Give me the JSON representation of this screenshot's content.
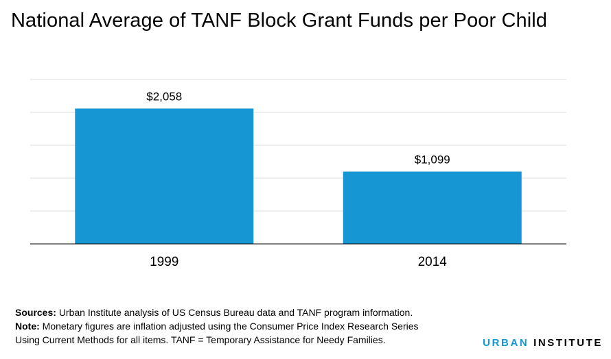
{
  "title": "National Average of TANF Block Grant Funds per Poor Child",
  "chart_data": {
    "type": "bar",
    "categories": [
      "1999",
      "2014"
    ],
    "values": [
      2058,
      1099
    ],
    "value_labels": [
      "$2,058",
      "$1,099"
    ],
    "ylim": [
      0,
      2500
    ],
    "grid": true,
    "bar_color": "#1696d2"
  },
  "notes": {
    "sources_label": "Sources:",
    "sources_text": "Urban Institute analysis of US Census Bureau data and TANF program information.",
    "note_label": "Note:",
    "note_text_line1": "Monetary figures are inflation adjusted using the Consumer Price Index Research Series",
    "note_text_line2": "Using Current Methods for all items. TANF = Temporary Assistance for Needy Families."
  },
  "logo": {
    "word1": "URBAN",
    "word2": "INSTITUTE"
  }
}
